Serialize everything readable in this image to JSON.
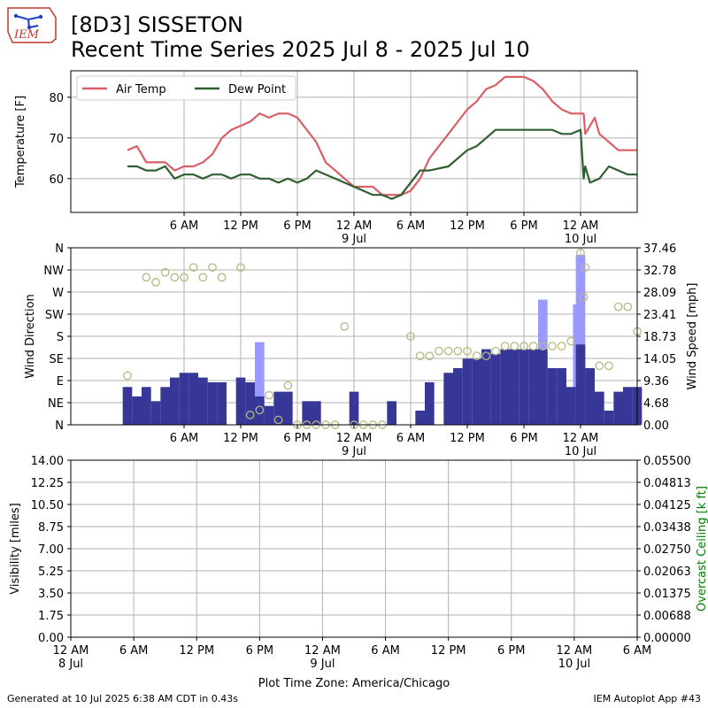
{
  "header": {
    "title_line1": "[8D3] SISSETON",
    "title_line2": "Recent Time Series 2025 Jul 8 - 2025 Jul 10",
    "logo_text": "IEM"
  },
  "footer": {
    "generated": "Generated at 10 Jul 2025 6:38 AM CDT in 0.43s",
    "app": "IEM Autoplot App #43"
  },
  "colors": {
    "air_temp": "#d95f67",
    "dew_point": "#2f5e2f",
    "gust_bar": "#9999ff",
    "speed_bar": "#373797",
    "direction_marker": "#b5b87f",
    "ceiling_axis": "#008000",
    "grid": "#b0b0b0"
  },
  "chart_data": [
    {
      "type": "line",
      "ylabel": "Temperature [F]",
      "xlim": [
        -6,
        54
      ],
      "ylim": [
        51.7,
        86.5
      ],
      "yticks": [
        60,
        70,
        80
      ],
      "xticks": [
        {
          "hour": 6,
          "label": "6 AM"
        },
        {
          "hour": 12,
          "label": "12 PM"
        },
        {
          "hour": 18,
          "label": "6 PM"
        },
        {
          "hour": 24,
          "label": "12 AM",
          "sub": "9 Jul"
        },
        {
          "hour": 30,
          "label": "6 AM"
        },
        {
          "hour": 36,
          "label": "12 PM"
        },
        {
          "hour": 42,
          "label": "6 PM"
        },
        {
          "hour": 48,
          "label": "12 AM",
          "sub": "10 Jul"
        }
      ],
      "legend_position": "top-left",
      "series": [
        {
          "name": "Air Temp",
          "x": [
            0,
            1,
            2,
            3,
            4,
            5,
            6,
            7,
            8,
            9,
            10,
            11,
            12,
            13,
            14,
            15,
            16,
            17,
            18,
            19,
            20,
            21,
            22,
            23,
            24,
            25,
            26,
            27,
            28,
            29,
            30,
            31,
            32,
            33,
            34,
            35,
            36,
            37,
            38,
            39,
            40,
            41,
            42,
            43,
            44,
            45,
            46,
            47,
            48,
            48.33,
            48.5,
            49,
            49.5,
            50,
            51,
            52,
            53,
            54
          ],
          "values": [
            67,
            68,
            64,
            64,
            64,
            62,
            63,
            63,
            64,
            66,
            70,
            72,
            73,
            74,
            76,
            75,
            76,
            76,
            75,
            72,
            69,
            64,
            62,
            60,
            58,
            58,
            58,
            56,
            56,
            56,
            57,
            60,
            65,
            68,
            71,
            74,
            77,
            79,
            82,
            83,
            85,
            85,
            85,
            84,
            82,
            79,
            77,
            76,
            76,
            76,
            71,
            73,
            75,
            71,
            69,
            67,
            67,
            67
          ]
        },
        {
          "name": "Dew Point",
          "x": [
            0,
            1,
            2,
            3,
            4,
            5,
            6,
            7,
            8,
            9,
            10,
            11,
            12,
            13,
            14,
            15,
            16,
            17,
            18,
            19,
            20,
            21,
            22,
            23,
            24,
            25,
            26,
            27,
            28,
            29,
            30,
            31,
            32,
            33,
            34,
            35,
            36,
            37,
            38,
            39,
            40,
            41,
            42,
            43,
            44,
            45,
            46,
            47,
            47.5,
            48,
            48.33,
            48.5,
            49,
            50,
            51,
            52,
            53,
            54
          ],
          "values": [
            63,
            63,
            62,
            62,
            63,
            60,
            61,
            61,
            60,
            61,
            61,
            60,
            61,
            61,
            60,
            60,
            59,
            60,
            59,
            60,
            62,
            61,
            60,
            59,
            58,
            57,
            56,
            56,
            55,
            56,
            59,
            62,
            62,
            62.5,
            63,
            65,
            67,
            68,
            70,
            72,
            72,
            72,
            72,
            72,
            72,
            72,
            71,
            71,
            71.5,
            72,
            60,
            63,
            59,
            60,
            63,
            62,
            61,
            61
          ]
        }
      ]
    },
    {
      "type": "bar",
      "ylabel": "Wind Direction",
      "ylabel_right": "Wind Speed [mph]",
      "xlim": [
        -6,
        54
      ],
      "direction_ticks": [
        "N",
        "NE",
        "E",
        "SE",
        "S",
        "SW",
        "W",
        "NW",
        "N"
      ],
      "speed_ticks": [
        "0.00",
        "4.68",
        "9.36",
        "14.05",
        "18.73",
        "23.41",
        "28.09",
        "32.78",
        "37.46"
      ],
      "speed_max": 37.46,
      "series": [
        {
          "name": "Wind Gust",
          "x": [
            14,
            44,
            47.7,
            48
          ],
          "values": [
            17.5,
            26.5,
            25.5,
            36
          ]
        },
        {
          "name": "Wind Speed",
          "x": [
            0,
            1,
            2,
            3,
            4,
            5,
            6,
            7,
            8,
            9,
            10,
            11,
            12,
            13,
            14,
            15,
            16,
            17,
            18,
            19,
            20,
            21,
            22,
            23,
            24,
            25,
            26,
            27,
            28,
            29,
            30,
            31,
            32,
            33,
            34,
            35,
            36,
            37,
            38,
            39,
            40,
            41,
            42,
            43,
            44,
            45,
            46,
            47,
            48,
            49,
            50,
            51,
            52,
            53,
            54
          ],
          "values": [
            8,
            6,
            8,
            5,
            8,
            10,
            11,
            11,
            10,
            9,
            9,
            0,
            10,
            9,
            6,
            4,
            7,
            7,
            0,
            5,
            5,
            0,
            0,
            0,
            7,
            0,
            0,
            0,
            5,
            0,
            0,
            3,
            9,
            0,
            11,
            12,
            14,
            14,
            16,
            15,
            16,
            16,
            16,
            16,
            16,
            12,
            12,
            8,
            17,
            12,
            7,
            3,
            7,
            8,
            8
          ],
          "window": [
            0,
            54
          ]
        },
        {
          "name": "Wind Direction",
          "type": "scatter",
          "x": [
            0,
            2,
            3,
            4,
            5,
            6,
            7,
            8,
            9,
            10,
            12,
            13,
            14,
            15,
            16,
            17,
            18,
            19,
            20,
            21,
            22,
            23,
            24,
            25,
            26,
            27,
            30,
            31,
            32,
            33,
            34,
            35,
            36,
            37,
            38,
            39,
            40,
            41,
            42,
            43,
            44,
            45,
            46,
            47,
            48,
            48.33,
            48.5,
            50,
            51,
            52,
            53,
            54
          ],
          "values": [
            100,
            300,
            290,
            310,
            300,
            300,
            320,
            300,
            320,
            300,
            320,
            20,
            30,
            60,
            10,
            80,
            0,
            0,
            0,
            0,
            0,
            200,
            0,
            0,
            0,
            0,
            180,
            140,
            140,
            150,
            150,
            150,
            150,
            140,
            140,
            150,
            160,
            160,
            160,
            160,
            160,
            160,
            160,
            170,
            350,
            260,
            320,
            120,
            120,
            240,
            240,
            190
          ]
        }
      ]
    },
    {
      "type": "line",
      "ylabel": "Visibility [miles]",
      "ylabel_right": "Overcast Ceiling [k ft]",
      "xlim": [
        0,
        54
      ],
      "vis_ticks": [
        "0.00",
        "1.75",
        "3.50",
        "5.25",
        "7.00",
        "8.75",
        "10.50",
        "12.25",
        "14.00"
      ],
      "ceil_ticks": [
        "0.00000",
        "0.00688",
        "0.01375",
        "0.02063",
        "0.02750",
        "0.03438",
        "0.04125",
        "0.04813",
        "0.05500"
      ],
      "xticks": [
        {
          "hour": 0,
          "label": "12 AM",
          "sub": "8 Jul"
        },
        {
          "hour": 6,
          "label": "6 AM"
        },
        {
          "hour": 12,
          "label": "12 PM"
        },
        {
          "hour": 18,
          "label": "6 PM"
        },
        {
          "hour": 24,
          "label": "12 AM",
          "sub": "9 Jul"
        },
        {
          "hour": 30,
          "label": "6 AM"
        },
        {
          "hour": 36,
          "label": "12 PM"
        },
        {
          "hour": 42,
          "label": "6 PM"
        },
        {
          "hour": 48,
          "label": "12 AM",
          "sub": "10 Jul"
        },
        {
          "hour": 54,
          "label": "6 AM"
        }
      ],
      "xlabel": "Plot Time Zone: America/Chicago",
      "series": []
    }
  ]
}
